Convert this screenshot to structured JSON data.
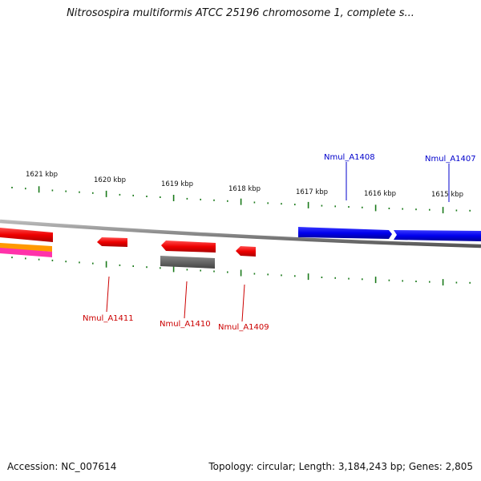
{
  "title": "Nitrosospira multiformis ATCC 25196 chromosome 1, complete s...",
  "axis": {
    "unit": "kbp",
    "ticks": [
      "1621 kbp",
      "1620 kbp",
      "1619 kbp",
      "1618 kbp",
      "1617 kbp",
      "1616 kbp",
      "1615 kbp"
    ]
  },
  "genes_forward": [
    {
      "name": "Nmul_A1408",
      "color": "#0000ee"
    },
    {
      "name": "Nmul_A1407",
      "color": "#0000ee"
    }
  ],
  "genes_reverse": [
    {
      "name": "Nmul_A1411",
      "color": "#cc0000"
    },
    {
      "name": "Nmul_A1410",
      "color": "#cc0000"
    },
    {
      "name": "Nmul_A1409",
      "color": "#cc0000"
    }
  ],
  "colors": {
    "forward_strand": "#0000ee",
    "reverse_strand": "#ee0000",
    "backbone": "#888888",
    "tick": "#1a7a1a",
    "gray_feature": "#666666",
    "orange_feature": "#ff9900",
    "magenta_feature": "#ff33aa"
  },
  "footer": {
    "accession": "Accession: NC_007614",
    "stats": "Topology: circular; Length: 3,184,243 bp; Genes: 2,805"
  }
}
